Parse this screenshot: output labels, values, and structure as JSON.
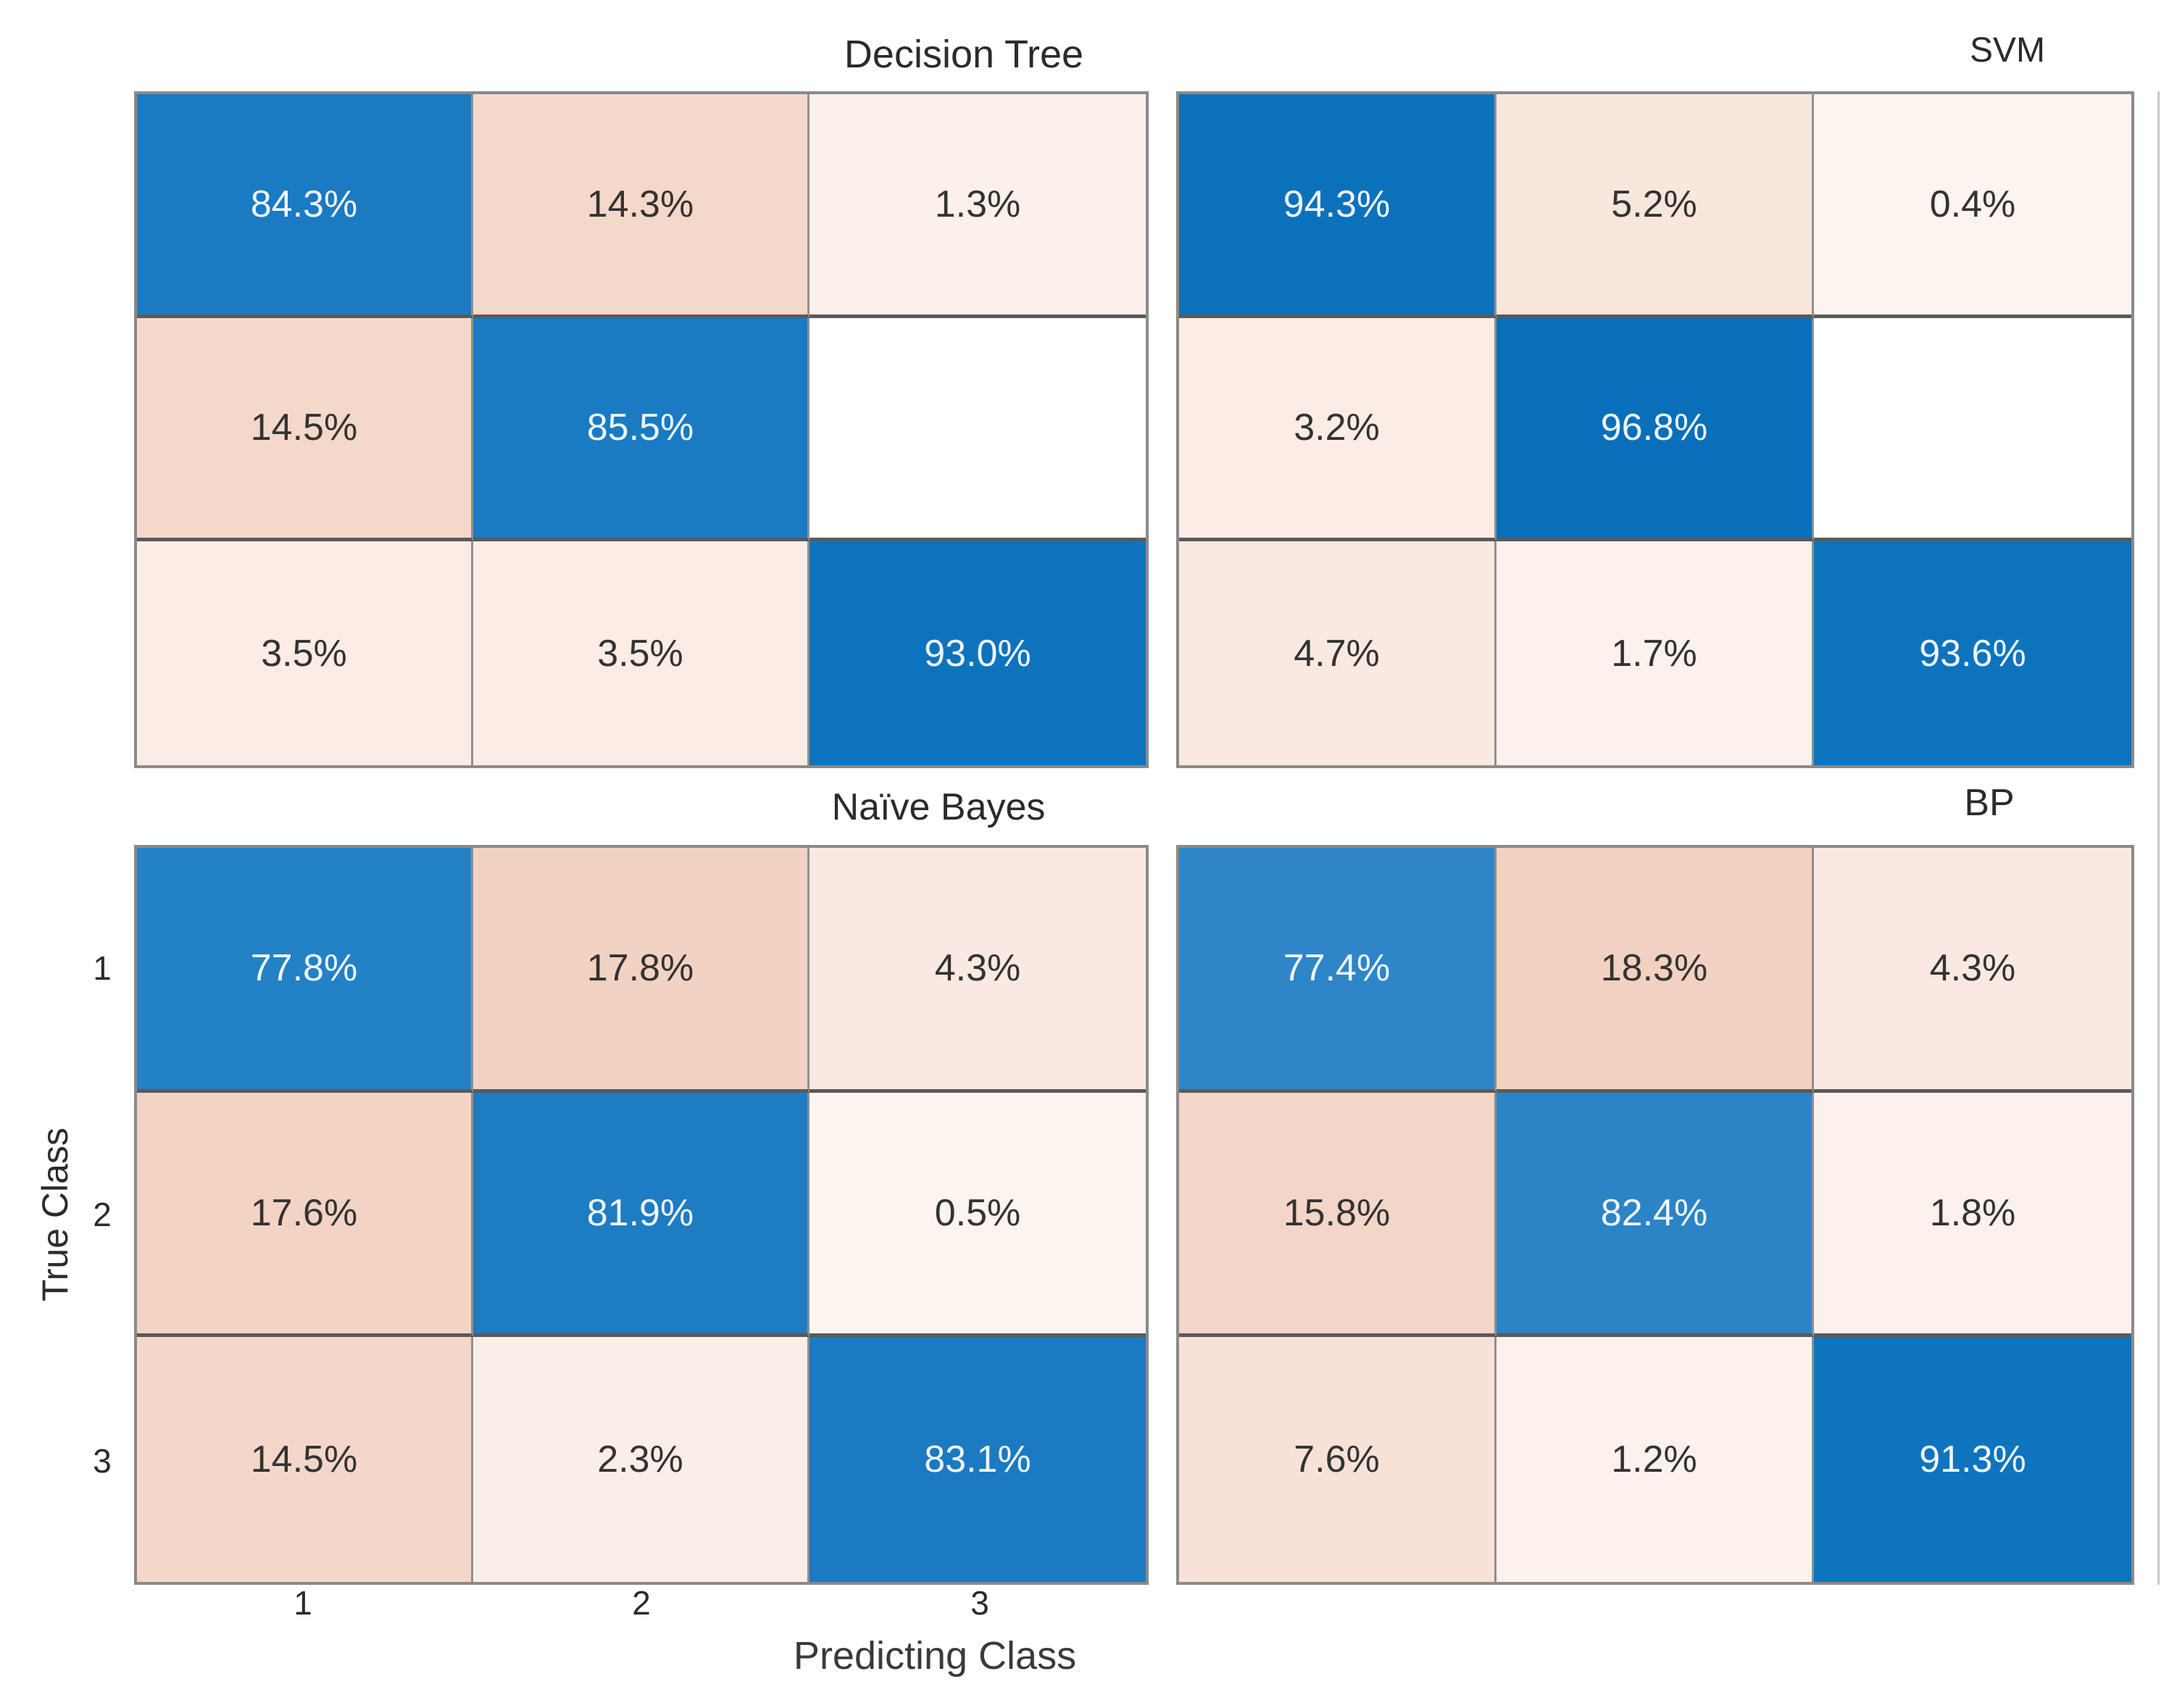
{
  "figure": {
    "xlabel": "Predicting Class",
    "ylabel": "True Class",
    "x_ticks": [
      "1",
      "2",
      "3"
    ],
    "y_ticks": [
      "1",
      "2",
      "3"
    ]
  },
  "chart_data": {
    "type": "heatmap",
    "subtype": "confusion-matrix-grid",
    "grid_layout": "2x2",
    "classes": [
      "1",
      "2",
      "3"
    ],
    "diagonal_color_base": "#0e73bd",
    "offdiagonal_color_base": "#f2d1c1",
    "matrices": [
      {
        "title": "Decision Tree",
        "position": "top-left",
        "values": [
          [
            84.3,
            14.3,
            1.3
          ],
          [
            14.5,
            85.5,
            null
          ],
          [
            3.5,
            3.5,
            93.0
          ]
        ],
        "labels": [
          [
            "84.3%",
            "14.3%",
            "1.3%"
          ],
          [
            "14.5%",
            "85.5%",
            ""
          ],
          [
            "3.5%",
            "3.5%",
            "93.0%"
          ]
        ],
        "cell_colors": [
          [
            "#1a7ac2",
            "#f4d8ca",
            "#fcf0ea"
          ],
          [
            "#f4d8ca",
            "#1a7ac2",
            "#ffffff"
          ],
          [
            "#fbece5",
            "#fbece5",
            "#0e73bd"
          ]
        ],
        "text_colors": [
          [
            "#eef5fb",
            "#333333",
            "#333333"
          ],
          [
            "#333333",
            "#eef5fb",
            "#333333"
          ],
          [
            "#333333",
            "#333333",
            "#eef5fb"
          ]
        ]
      },
      {
        "title": "SVM",
        "position": "top-right",
        "values": [
          [
            94.3,
            5.2,
            0.4
          ],
          [
            3.2,
            96.8,
            null
          ],
          [
            4.7,
            1.7,
            93.6
          ]
        ],
        "labels": [
          [
            "94.3%",
            "5.2%",
            "0.4%"
          ],
          [
            "3.2%",
            "96.8%",
            ""
          ],
          [
            "4.7%",
            "1.7%",
            "93.6%"
          ]
        ],
        "cell_colors": [
          [
            "#0c71bb",
            "#f9e7de",
            "#fdf3ef"
          ],
          [
            "#fbece6",
            "#0a6fba",
            "#ffffff"
          ],
          [
            "#f9e9e1",
            "#fcf1ec",
            "#0e73bd"
          ]
        ],
        "text_colors": [
          [
            "#eef5fb",
            "#333333",
            "#333333"
          ],
          [
            "#333333",
            "#eef5fb",
            "#333333"
          ],
          [
            "#333333",
            "#333333",
            "#eef5fb"
          ]
        ]
      },
      {
        "title": "Naïve Bayes",
        "position": "bottom-left",
        "values": [
          [
            77.8,
            17.8,
            4.3
          ],
          [
            17.6,
            81.9,
            0.5
          ],
          [
            14.5,
            2.3,
            83.1
          ]
        ],
        "labels": [
          [
            "77.8%",
            "17.8%",
            "4.3%"
          ],
          [
            "17.6%",
            "81.9%",
            "0.5%"
          ],
          [
            "14.5%",
            "2.3%",
            "83.1%"
          ]
        ],
        "cell_colors": [
          [
            "#2381c5",
            "#f2d2c2",
            "#f9e9e2"
          ],
          [
            "#f2d3c4",
            "#1d7cc2",
            "#fdf4f0"
          ],
          [
            "#f4d7c9",
            "#fbeee8",
            "#1b7ac1"
          ]
        ],
        "text_colors": [
          [
            "#eef5fb",
            "#333333",
            "#333333"
          ],
          [
            "#333333",
            "#eef5fb",
            "#333333"
          ],
          [
            "#333333",
            "#333333",
            "#eef5fb"
          ]
        ]
      },
      {
        "title": "BP",
        "position": "bottom-right",
        "values": [
          [
            77.4,
            18.3,
            4.3
          ],
          [
            15.8,
            82.4,
            1.8
          ],
          [
            7.6,
            1.2,
            91.3
          ]
        ],
        "labels": [
          [
            "77.4%",
            "18.3%",
            "4.3%"
          ],
          [
            "15.8%",
            "82.4%",
            "1.8%"
          ],
          [
            "7.6%",
            "1.2%",
            "91.3%"
          ]
        ],
        "cell_colors": [
          [
            "#2e86c8",
            "#f2d1c1",
            "#f9e9e2"
          ],
          [
            "#f3d6c7",
            "#2a84c6",
            "#fcf1ec"
          ],
          [
            "#f8e2d8",
            "#fcf1ec",
            "#0f74be"
          ]
        ],
        "text_colors": [
          [
            "#eef5fb",
            "#333333",
            "#333333"
          ],
          [
            "#333333",
            "#eef5fb",
            "#333333"
          ],
          [
            "#333333",
            "#333333",
            "#eef5fb"
          ]
        ]
      }
    ]
  }
}
